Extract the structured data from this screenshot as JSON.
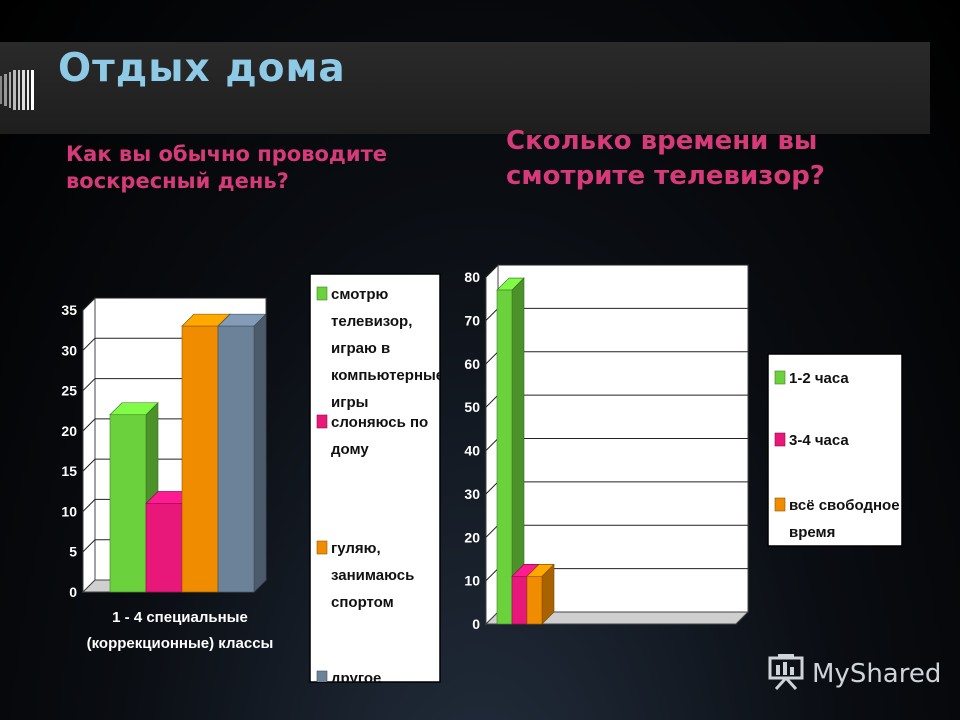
{
  "slide": {
    "title": "Отдых дома",
    "question1": "Как вы обычно проводите воскресный день?",
    "question2": "Сколько времени вы смотрите телевизор?"
  },
  "chart_data": [
    {
      "type": "bar",
      "categories": [
        "1 - 4 специальные (коррекционные) классы"
      ],
      "category_lines": [
        "1 - 4 специальные",
        "(коррекционные) классы"
      ],
      "series": [
        {
          "name": "смотрю телевизор, играю в компьютерные игры",
          "name_lines": [
            "смотрю",
            "телевизор,",
            "играю в",
            "компьютерные",
            "игры"
          ],
          "values": [
            22
          ],
          "color": "#6bd13c"
        },
        {
          "name": "слоняюсь по дому",
          "name_lines": [
            "слоняюсь по",
            "дому"
          ],
          "values": [
            11
          ],
          "color": "#e8177a"
        },
        {
          "name": "гуляю, занимаюсь спортом",
          "name_lines": [
            "гуляю,",
            "занимаюсь",
            "спортом"
          ],
          "values": [
            33
          ],
          "color": "#f08c00"
        },
        {
          "name": "другое",
          "name_lines": [
            "другое"
          ],
          "values": [
            33
          ],
          "color": "#6c8299"
        }
      ],
      "ylim": [
        0,
        35
      ],
      "yticks": [
        "0",
        "5",
        "10",
        "15",
        "20",
        "25",
        "30",
        "35"
      ],
      "grid": true,
      "legend": "right"
    },
    {
      "type": "bar",
      "categories": [
        ""
      ],
      "series": [
        {
          "name": "1-2 часа",
          "name_lines": [
            "1-2 часа"
          ],
          "values": [
            77
          ],
          "color": "#6bd13c"
        },
        {
          "name": "3-4 часа",
          "name_lines": [
            "3-4 часа"
          ],
          "values": [
            11
          ],
          "color": "#e8177a"
        },
        {
          "name": "всё свободное время",
          "name_lines": [
            "всё свободное",
            "время"
          ],
          "values": [
            11
          ],
          "color": "#f08c00"
        }
      ],
      "ylim": [
        0,
        80
      ],
      "yticks": [
        "0",
        "10",
        "20",
        "30",
        "40",
        "50",
        "60",
        "70",
        "80"
      ],
      "grid": true,
      "legend": "right"
    }
  ],
  "watermark": {
    "text": "MyShared",
    "icon": "presentation-board-icon"
  }
}
